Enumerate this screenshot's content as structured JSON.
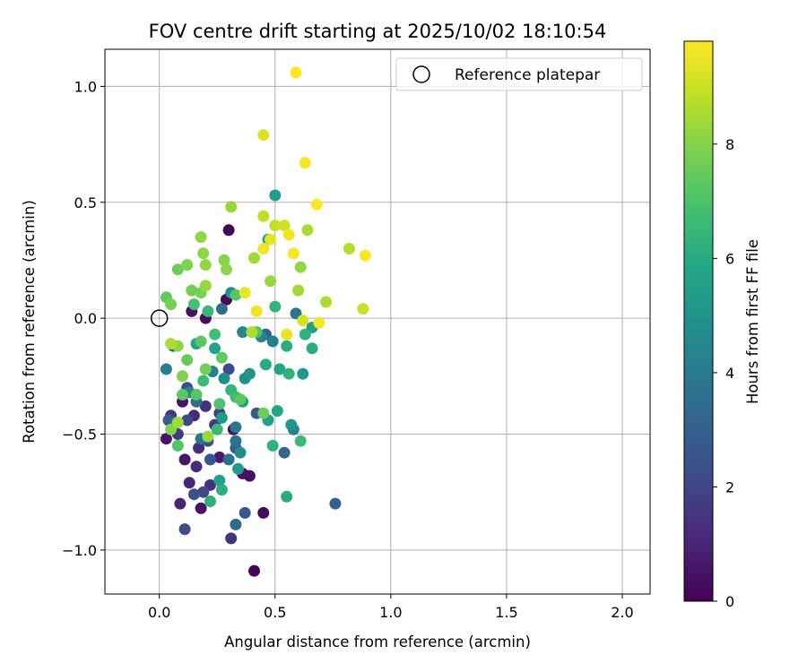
{
  "chart_data": {
    "type": "scatter",
    "title": "FOV centre drift starting at 2025/10/02 18:10:54",
    "xlabel": "Angular distance from reference (arcmin)",
    "ylabel": "Rotation from reference (arcmin)",
    "xlim": [
      -0.235,
      2.12
    ],
    "ylim": [
      -1.19,
      1.16
    ],
    "xticks": [
      0.0,
      0.5,
      1.0,
      1.5,
      2.0
    ],
    "xtick_labels": [
      "0.0",
      "0.5",
      "1.0",
      "1.5",
      "2.0"
    ],
    "yticks": [
      -1.0,
      -0.5,
      0.0,
      0.5,
      1.0
    ],
    "ytick_labels": [
      "−1.0",
      "−0.5",
      "0.0",
      "0.5",
      "1.0"
    ],
    "grid": true,
    "legend": {
      "position": "upper-right",
      "label": "Reference platepar"
    },
    "reference": {
      "x": 0.0,
      "y": 0.0
    },
    "colorbar": {
      "label": "Hours from first FF file",
      "min": 0,
      "max": 9.8,
      "ticks": [
        0,
        2,
        4,
        6,
        8
      ],
      "tick_labels": [
        "0",
        "2",
        "4",
        "6",
        "8"
      ],
      "colormap": "viridis"
    },
    "points": [
      {
        "x": 0.41,
        "y": -1.09,
        "c": 0.1
      },
      {
        "x": 0.3,
        "y": 0.38,
        "c": 0.1
      },
      {
        "x": 0.29,
        "y": 0.08,
        "c": 0.2
      },
      {
        "x": 0.45,
        "y": -0.84,
        "c": 0.3
      },
      {
        "x": 0.18,
        "y": -0.82,
        "c": 0.5
      },
      {
        "x": 0.11,
        "y": -0.61,
        "c": 0.6
      },
      {
        "x": 0.26,
        "y": -0.6,
        "c": 0.7
      },
      {
        "x": 0.32,
        "y": -0.48,
        "c": 0.5
      },
      {
        "x": 0.36,
        "y": -0.67,
        "c": 0.6
      },
      {
        "x": 0.39,
        "y": -0.68,
        "c": 0.4
      },
      {
        "x": 0.2,
        "y": 0.0,
        "c": 0.4
      },
      {
        "x": 0.14,
        "y": 0.03,
        "c": 0.5
      },
      {
        "x": 0.1,
        "y": -0.36,
        "c": 0.5
      },
      {
        "x": 0.03,
        "y": -0.52,
        "c": 0.6
      },
      {
        "x": 0.09,
        "y": -0.8,
        "c": 1.0
      },
      {
        "x": 0.13,
        "y": -0.71,
        "c": 1.1
      },
      {
        "x": 0.16,
        "y": -0.64,
        "c": 1.2
      },
      {
        "x": 0.17,
        "y": -0.56,
        "c": 1.3
      },
      {
        "x": 0.22,
        "y": -0.72,
        "c": 1.4
      },
      {
        "x": 0.31,
        "y": -0.95,
        "c": 1.5
      },
      {
        "x": 0.15,
        "y": -0.42,
        "c": 1.2
      },
      {
        "x": 0.2,
        "y": -0.38,
        "c": 1.4
      },
      {
        "x": 0.05,
        "y": -0.42,
        "c": 1.6
      },
      {
        "x": 0.08,
        "y": -0.5,
        "c": 1.7
      },
      {
        "x": 0.24,
        "y": -0.46,
        "c": 1.6
      },
      {
        "x": 0.26,
        "y": -0.41,
        "c": 1.8
      },
      {
        "x": 0.11,
        "y": -0.91,
        "c": 2.3
      },
      {
        "x": 0.19,
        "y": -0.75,
        "c": 2.2
      },
      {
        "x": 0.15,
        "y": -0.76,
        "c": 2.4
      },
      {
        "x": 0.12,
        "y": -0.44,
        "c": 2.1
      },
      {
        "x": 0.21,
        "y": -0.53,
        "c": 2.5
      },
      {
        "x": 0.22,
        "y": -0.61,
        "c": 2.6
      },
      {
        "x": 0.37,
        "y": -0.84,
        "c": 2.7
      },
      {
        "x": 0.04,
        "y": -0.44,
        "c": 2.8
      },
      {
        "x": 0.12,
        "y": -0.3,
        "c": 2.2
      },
      {
        "x": 0.3,
        "y": -0.22,
        "c": 2.3
      },
      {
        "x": 0.33,
        "y": -0.56,
        "c": 2.9
      },
      {
        "x": 0.42,
        "y": -0.41,
        "c": 2.8
      },
      {
        "x": 0.46,
        "y": -0.07,
        "c": 3.0
      },
      {
        "x": 0.76,
        "y": -0.8,
        "c": 3.0
      },
      {
        "x": 0.54,
        "y": -0.58,
        "c": 3.2
      },
      {
        "x": 0.33,
        "y": -0.89,
        "c": 3.4
      },
      {
        "x": 0.06,
        "y": -0.12,
        "c": 3.1
      },
      {
        "x": 0.33,
        "y": -0.53,
        "c": 3.6
      },
      {
        "x": 0.07,
        "y": -0.45,
        "c": 3.3
      },
      {
        "x": 0.27,
        "y": 0.04,
        "c": 3.5
      },
      {
        "x": 0.18,
        "y": -0.52,
        "c": 3.8
      },
      {
        "x": 0.3,
        "y": -0.61,
        "c": 3.7
      },
      {
        "x": 0.16,
        "y": -0.36,
        "c": 3.5
      },
      {
        "x": 0.49,
        "y": -0.1,
        "c": 4.2
      },
      {
        "x": 0.59,
        "y": 0.02,
        "c": 3.9
      },
      {
        "x": 0.58,
        "y": -0.48,
        "c": 4.3
      },
      {
        "x": 0.36,
        "y": -0.06,
        "c": 4.5
      },
      {
        "x": 0.44,
        "y": -0.08,
        "c": 4.4
      },
      {
        "x": 0.28,
        "y": -0.26,
        "c": 4.7
      },
      {
        "x": 0.23,
        "y": -0.23,
        "c": 4.2
      },
      {
        "x": 0.35,
        "y": -0.58,
        "c": 4.8
      },
      {
        "x": 0.03,
        "y": -0.22,
        "c": 4.1
      },
      {
        "x": 0.13,
        "y": -0.32,
        "c": 4.6
      },
      {
        "x": 0.37,
        "y": -0.26,
        "c": 4.9
      },
      {
        "x": 0.33,
        "y": -0.47,
        "c": 4.0
      },
      {
        "x": 0.31,
        "y": 0.11,
        "c": 4.9
      },
      {
        "x": 0.39,
        "y": -0.24,
        "c": 5.0
      },
      {
        "x": 0.5,
        "y": 0.53,
        "c": 5.4
      },
      {
        "x": 0.57,
        "y": -0.46,
        "c": 5.1
      },
      {
        "x": 0.34,
        "y": -0.65,
        "c": 5.3
      },
      {
        "x": 0.62,
        "y": -0.24,
        "c": 5.2
      },
      {
        "x": 0.47,
        "y": 0.34,
        "c": 5.6
      },
      {
        "x": 0.66,
        "y": -0.04,
        "c": 5.5
      },
      {
        "x": 0.36,
        "y": -0.36,
        "c": 5.5
      },
      {
        "x": 0.26,
        "y": -0.7,
        "c": 5.6
      },
      {
        "x": 0.27,
        "y": -0.43,
        "c": 5.3
      },
      {
        "x": 0.47,
        "y": -0.44,
        "c": 5.6
      },
      {
        "x": 0.16,
        "y": -0.11,
        "c": 5.7
      },
      {
        "x": 0.24,
        "y": -0.13,
        "c": 5.6
      },
      {
        "x": 0.51,
        "y": -0.4,
        "c": 5.8
      },
      {
        "x": 0.52,
        "y": -0.22,
        "c": 5.8
      },
      {
        "x": 0.55,
        "y": -0.77,
        "c": 6.0
      },
      {
        "x": 0.66,
        "y": -0.13,
        "c": 6.1
      },
      {
        "x": 0.55,
        "y": -0.12,
        "c": 6.1
      },
      {
        "x": 0.63,
        "y": -0.07,
        "c": 6.3
      },
      {
        "x": 0.46,
        "y": -0.2,
        "c": 6.0
      },
      {
        "x": 0.22,
        "y": -0.79,
        "c": 6.2
      },
      {
        "x": 0.27,
        "y": -0.74,
        "c": 6.2
      },
      {
        "x": 0.5,
        "y": 0.05,
        "c": 6.4
      },
      {
        "x": 0.56,
        "y": -0.24,
        "c": 6.3
      },
      {
        "x": 0.31,
        "y": -0.31,
        "c": 6.4
      },
      {
        "x": 0.49,
        "y": -0.55,
        "c": 6.3
      },
      {
        "x": 0.61,
        "y": -0.53,
        "c": 6.6
      },
      {
        "x": 0.21,
        "y": 0.03,
        "c": 6.5
      },
      {
        "x": 0.19,
        "y": -0.27,
        "c": 6.7
      },
      {
        "x": 0.24,
        "y": -0.07,
        "c": 6.8
      },
      {
        "x": 0.15,
        "y": 0.06,
        "c": 6.9
      },
      {
        "x": 0.33,
        "y": -0.34,
        "c": 6.7
      },
      {
        "x": 0.25,
        "y": -0.48,
        "c": 6.6
      },
      {
        "x": 0.42,
        "y": -0.06,
        "c": 7.0
      },
      {
        "x": 0.33,
        "y": 0.1,
        "c": 7.2
      },
      {
        "x": 0.18,
        "y": -0.1,
        "c": 7.3
      },
      {
        "x": 0.26,
        "y": -0.37,
        "c": 7.0
      },
      {
        "x": 0.08,
        "y": -0.55,
        "c": 7.1
      },
      {
        "x": 0.1,
        "y": -0.33,
        "c": 7.3
      },
      {
        "x": 0.12,
        "y": -0.18,
        "c": 7.5
      },
      {
        "x": 0.16,
        "y": -0.33,
        "c": 7.2
      },
      {
        "x": 0.27,
        "y": -0.17,
        "c": 7.4
      },
      {
        "x": 0.35,
        "y": -0.35,
        "c": 7.3
      },
      {
        "x": 0.45,
        "y": -0.41,
        "c": 7.6
      },
      {
        "x": 0.08,
        "y": 0.21,
        "c": 7.6
      },
      {
        "x": 0.03,
        "y": 0.09,
        "c": 7.4
      },
      {
        "x": 0.14,
        "y": 0.12,
        "c": 7.7
      },
      {
        "x": 0.18,
        "y": 0.11,
        "c": 7.8
      },
      {
        "x": 0.12,
        "y": 0.23,
        "c": 7.9
      },
      {
        "x": 0.05,
        "y": 0.06,
        "c": 7.8
      },
      {
        "x": 0.1,
        "y": -0.25,
        "c": 7.9
      },
      {
        "x": 0.2,
        "y": -0.22,
        "c": 7.7
      },
      {
        "x": 0.05,
        "y": -0.48,
        "c": 8.0
      },
      {
        "x": 0.19,
        "y": 0.28,
        "c": 8.1
      },
      {
        "x": 0.2,
        "y": 0.23,
        "c": 8.2
      },
      {
        "x": 0.28,
        "y": 0.25,
        "c": 8.0
      },
      {
        "x": 0.29,
        "y": 0.21,
        "c": 8.1
      },
      {
        "x": 0.18,
        "y": 0.35,
        "c": 8.2
      },
      {
        "x": 0.31,
        "y": 0.48,
        "c": 8.3
      },
      {
        "x": 0.41,
        "y": 0.26,
        "c": 8.4
      },
      {
        "x": 0.48,
        "y": 0.16,
        "c": 8.3
      },
      {
        "x": 0.61,
        "y": 0.22,
        "c": 8.2
      },
      {
        "x": 0.6,
        "y": 0.12,
        "c": 8.4
      },
      {
        "x": 0.64,
        "y": 0.38,
        "c": 8.5
      },
      {
        "x": 0.72,
        "y": 0.07,
        "c": 8.6
      },
      {
        "x": 0.82,
        "y": 0.3,
        "c": 8.7
      },
      {
        "x": 0.2,
        "y": 0.14,
        "c": 8.3
      },
      {
        "x": 0.08,
        "y": -0.12,
        "c": 8.1
      },
      {
        "x": 0.05,
        "y": -0.11,
        "c": 8.6
      },
      {
        "x": 0.08,
        "y": -0.45,
        "c": 8.4
      },
      {
        "x": 0.21,
        "y": -0.51,
        "c": 8.3
      },
      {
        "x": 0.45,
        "y": 0.44,
        "c": 8.8
      },
      {
        "x": 0.5,
        "y": 0.4,
        "c": 8.9
      },
      {
        "x": 0.4,
        "y": -0.06,
        "c": 8.6
      },
      {
        "x": 0.54,
        "y": 0.4,
        "c": 9.1
      },
      {
        "x": 0.88,
        "y": 0.04,
        "c": 9.0
      },
      {
        "x": 0.45,
        "y": 0.79,
        "c": 9.3
      },
      {
        "x": 0.62,
        "y": -0.01,
        "c": 9.2
      },
      {
        "x": 0.48,
        "y": 0.34,
        "c": 9.4
      },
      {
        "x": 0.37,
        "y": 0.11,
        "c": 9.5
      },
      {
        "x": 0.45,
        "y": 0.3,
        "c": 9.6
      },
      {
        "x": 0.55,
        "y": -0.07,
        "c": 9.5
      },
      {
        "x": 0.56,
        "y": 0.36,
        "c": 9.6
      },
      {
        "x": 0.58,
        "y": 0.28,
        "c": 9.7
      },
      {
        "x": 0.63,
        "y": 0.67,
        "c": 9.7
      },
      {
        "x": 0.59,
        "y": 1.06,
        "c": 9.8
      },
      {
        "x": 0.68,
        "y": 0.49,
        "c": 9.8
      },
      {
        "x": 0.69,
        "y": -0.02,
        "c": 9.7
      },
      {
        "x": 0.89,
        "y": 0.27,
        "c": 9.8
      },
      {
        "x": 0.42,
        "y": 0.03,
        "c": 9.6
      }
    ]
  }
}
